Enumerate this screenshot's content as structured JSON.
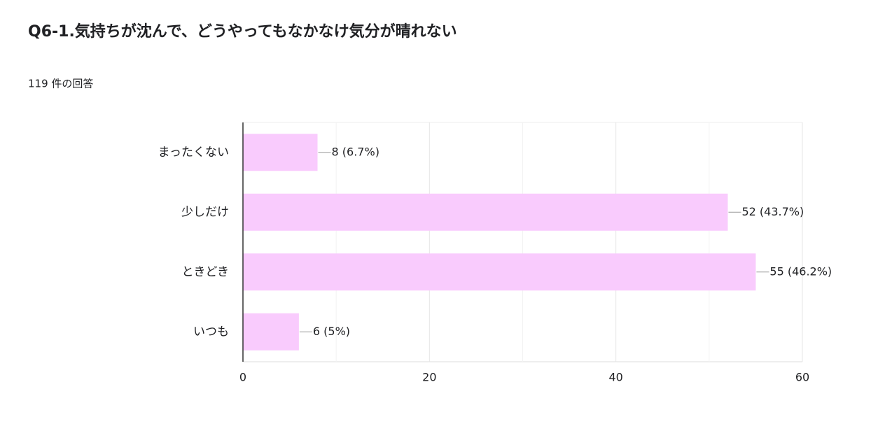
{
  "chart_data": {
    "type": "bar",
    "orientation": "horizontal",
    "title": "Q6-1.気持ちが沈んで、どうやってもなかなけ気分が晴れない",
    "subtitle": "119 件の回答",
    "categories": [
      "まったくない",
      "少しだけ",
      "ときどき",
      "いつも"
    ],
    "values": [
      8,
      52,
      55,
      6
    ],
    "value_labels": [
      "8 (6.7%)",
      "52 (43.7%)",
      "55 (46.2%)",
      "6 (5%)"
    ],
    "color": "#f9cbfd",
    "xlim": [
      0,
      60
    ],
    "xticks": [
      0,
      20,
      40,
      60
    ],
    "xminor": [
      10,
      30,
      50
    ],
    "grid": true
  }
}
